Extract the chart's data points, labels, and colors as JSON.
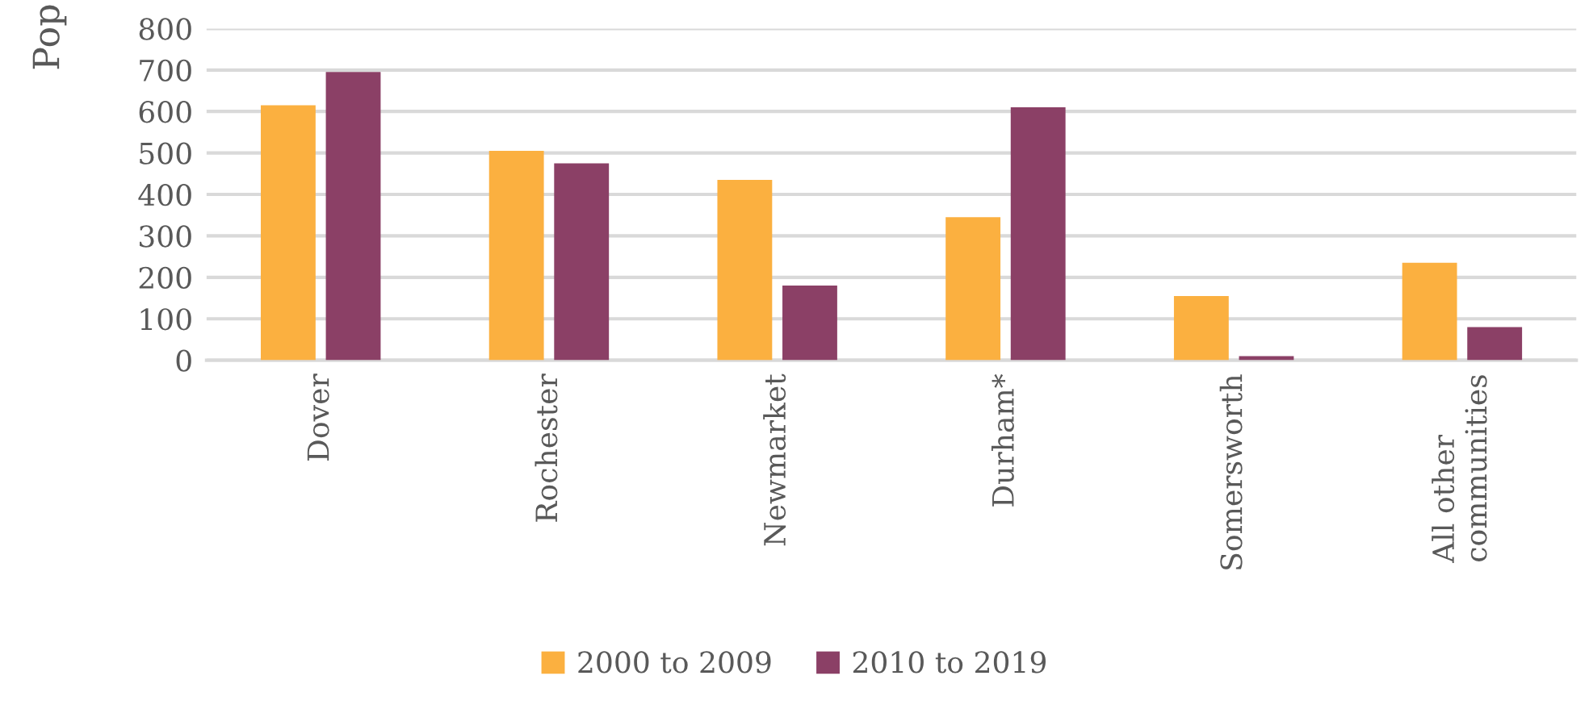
{
  "chart_data": {
    "type": "bar",
    "ylabel": "Pop",
    "categories": [
      "Dover",
      "Rochester",
      "Newmarket",
      "Durham*",
      "Somersworth",
      "All other\ncommunities"
    ],
    "series": [
      {
        "name": "2000 to 2009",
        "color": "#fbb040",
        "values": [
          615,
          505,
          435,
          345,
          155,
          235
        ]
      },
      {
        "name": "2010 to 2019",
        "color": "#8b4066",
        "values": [
          695,
          475,
          180,
          610,
          10,
          80
        ]
      }
    ],
    "ylim": [
      0,
      800
    ],
    "yticks": [
      0,
      100,
      200,
      300,
      400,
      500,
      600,
      700,
      800
    ],
    "grid": "y",
    "legend": "bottom"
  }
}
